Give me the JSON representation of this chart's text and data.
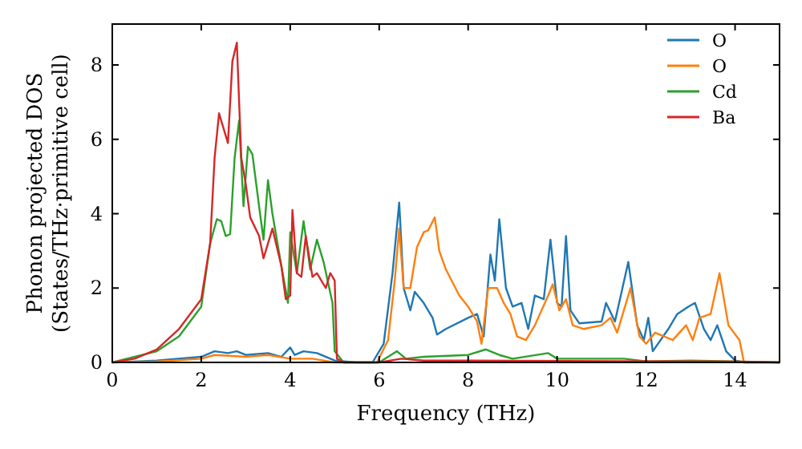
{
  "chart_data": {
    "type": "line",
    "xlabel": "Frequency (THz)",
    "ylabel": "Phonon projected DOS\n(States/THz·primitive cell)",
    "xlim": [
      0,
      15
    ],
    "ylim": [
      0,
      9.1
    ],
    "xticks": [
      0,
      2,
      4,
      6,
      8,
      10,
      12,
      14
    ],
    "yticks": [
      0,
      2,
      4,
      6,
      8
    ],
    "legend": "top right",
    "grid": false,
    "series": [
      {
        "name": "O",
        "color": "#1f77b4",
        "x": [
          0,
          1,
          2,
          2.3,
          2.6,
          2.8,
          3,
          3.5,
          3.8,
          4,
          4.1,
          4.3,
          4.6,
          5,
          5.5,
          5.85,
          6.1,
          6.3,
          6.45,
          6.55,
          6.7,
          6.8,
          7,
          7.2,
          7.3,
          7.5,
          8,
          8.2,
          8.35,
          8.5,
          8.6,
          8.7,
          8.85,
          9,
          9.2,
          9.35,
          9.5,
          9.7,
          9.85,
          10,
          10.1,
          10.2,
          10.3,
          10.5,
          11,
          11.1,
          11.3,
          11.6,
          11.8,
          11.95,
          12.05,
          12.15,
          12.5,
          12.7,
          12.95,
          13.1,
          13.3,
          13.45,
          13.6,
          13.8,
          14,
          14.2,
          15
        ],
        "values": [
          0,
          0.05,
          0.15,
          0.3,
          0.25,
          0.3,
          0.2,
          0.25,
          0.15,
          0.4,
          0.2,
          0.3,
          0.25,
          0.05,
          0,
          0,
          0.5,
          2.4,
          4.3,
          2,
          1.4,
          1.9,
          1.6,
          1.2,
          0.75,
          0.9,
          1.2,
          1.3,
          0.7,
          2.9,
          2.2,
          3.85,
          2,
          1.5,
          1.6,
          0.9,
          1.8,
          1.7,
          3.3,
          1.6,
          1.5,
          3.4,
          1.4,
          1.05,
          1.1,
          1.6,
          1.1,
          2.7,
          1,
          0.6,
          1.2,
          0.3,
          0.9,
          1.3,
          1.5,
          1.6,
          0.9,
          0.6,
          1,
          0.3,
          0.05,
          0,
          0
        ]
      },
      {
        "name": "O",
        "color": "#ff7f0e",
        "x": [
          0,
          1,
          2,
          2.3,
          3,
          3.5,
          4,
          4.5,
          5,
          5.95,
          6.2,
          6.35,
          6.45,
          6.55,
          6.7,
          6.85,
          7,
          7.1,
          7.25,
          7.35,
          7.5,
          7.8,
          8,
          8.2,
          8.3,
          8.45,
          8.65,
          8.8,
          8.95,
          9.1,
          9.3,
          9.5,
          9.8,
          9.9,
          10.05,
          10.2,
          10.35,
          10.6,
          11,
          11.2,
          11.35,
          11.65,
          11.85,
          12,
          12.2,
          12.6,
          12.9,
          13.05,
          13.2,
          13.45,
          13.65,
          13.85,
          14.1,
          14.2,
          15
        ],
        "values": [
          0,
          0.02,
          0.1,
          0.2,
          0.15,
          0.2,
          0.1,
          0.1,
          0,
          0,
          0.6,
          2.2,
          3.6,
          2,
          2,
          3.1,
          3.5,
          3.55,
          3.9,
          3,
          2.5,
          1.8,
          1.5,
          1.1,
          0.5,
          2,
          2,
          1.6,
          1.3,
          0.7,
          0.6,
          1,
          1.8,
          2.1,
          1.4,
          1.7,
          1,
          0.9,
          1,
          1.2,
          0.8,
          2,
          0.7,
          0.5,
          0.8,
          0.6,
          1,
          0.6,
          1.2,
          1.3,
          2.4,
          1,
          0.6,
          0,
          0
        ]
      },
      {
        "name": "Cd",
        "color": "#2ca02c",
        "x": [
          0,
          1,
          1.5,
          2,
          2.2,
          2.35,
          2.45,
          2.55,
          2.65,
          2.75,
          2.85,
          2.95,
          3.05,
          3.15,
          3.3,
          3.4,
          3.5,
          3.6,
          3.8,
          3.95,
          4,
          4.15,
          4.3,
          4.45,
          4.6,
          4.75,
          4.95,
          5,
          5.2,
          6,
          6.4,
          6.6,
          7,
          8,
          8.4,
          8.7,
          9,
          9.8,
          10,
          11.5,
          12,
          13,
          14.2,
          15
        ],
        "values": [
          0,
          0.3,
          0.7,
          1.5,
          3.2,
          3.85,
          3.8,
          3.4,
          3.45,
          5.5,
          6.5,
          4.2,
          5.8,
          5.6,
          4.2,
          3.3,
          4.9,
          4,
          2.6,
          1.6,
          3.5,
          2.4,
          3.8,
          2.5,
          3.3,
          2.7,
          1.6,
          0.3,
          0,
          0,
          0.3,
          0.1,
          0.15,
          0.2,
          0.35,
          0.2,
          0.1,
          0.25,
          0.1,
          0.1,
          0.03,
          0.05,
          0.02,
          0
        ]
      },
      {
        "name": "Ba",
        "color": "#d62728",
        "x": [
          0,
          0.5,
          1,
          1.5,
          2,
          2.2,
          2.3,
          2.4,
          2.6,
          2.7,
          2.8,
          2.9,
          3,
          3.1,
          3.3,
          3.4,
          3.6,
          3.8,
          3.9,
          4,
          4.05,
          4.15,
          4.25,
          4.35,
          4.5,
          4.6,
          4.8,
          4.9,
          5,
          5.05,
          5.2,
          6,
          6.5,
          7,
          8,
          14,
          15
        ],
        "values": [
          0,
          0.1,
          0.35,
          0.9,
          1.7,
          3.2,
          5.5,
          6.7,
          5.9,
          8.1,
          8.6,
          5.5,
          4.8,
          3.9,
          3.4,
          2.8,
          3.6,
          2.6,
          1.7,
          1.8,
          4.1,
          2.4,
          2.3,
          3.4,
          2.3,
          2.4,
          2,
          2.4,
          2.2,
          0.1,
          0,
          0,
          0.1,
          0.05,
          0.05,
          0.02,
          0
        ]
      }
    ]
  }
}
